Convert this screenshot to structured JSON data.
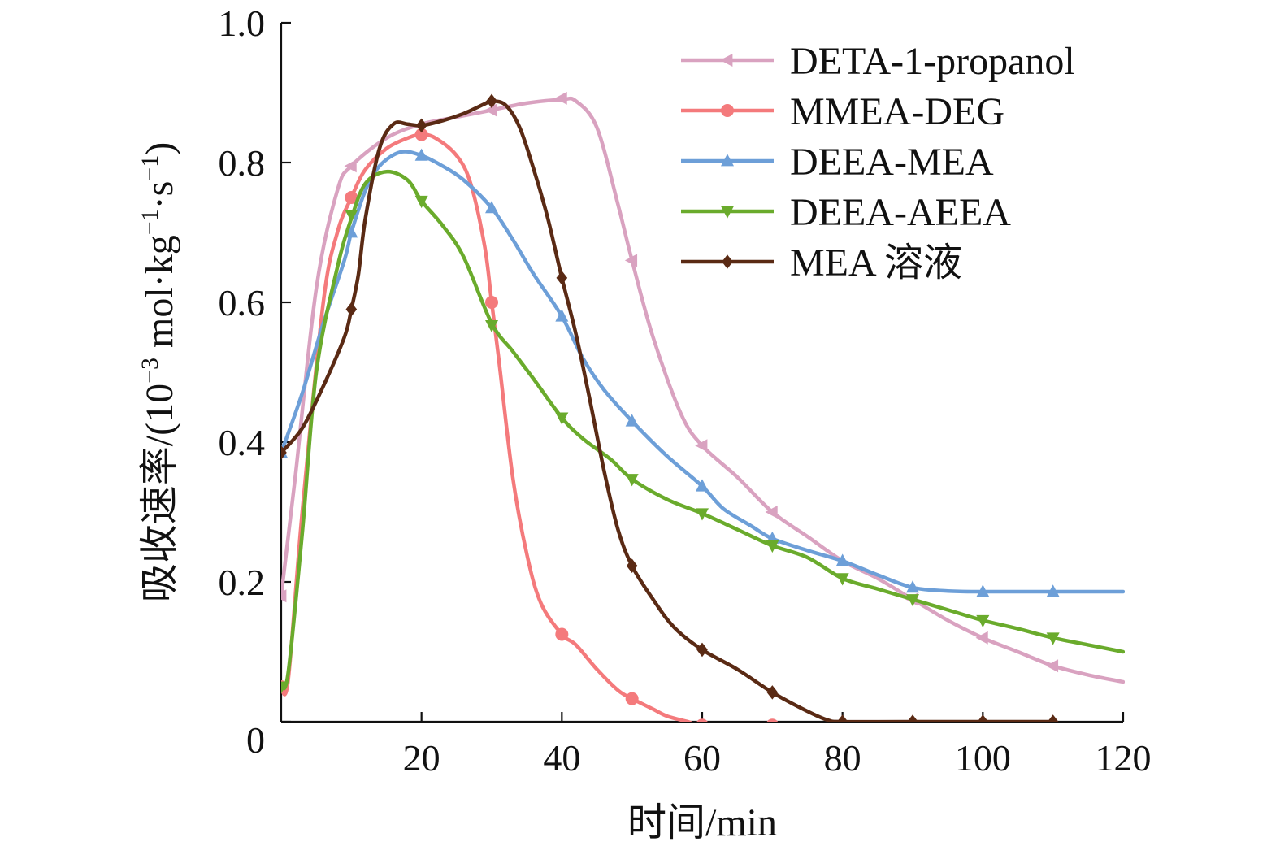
{
  "chart_data": {
    "type": "line",
    "xlabel": "时间/min",
    "ylabel": {
      "prefix": "吸收速率/(10",
      "exp1": "−3",
      "mid": " mol·kg",
      "exp2": "−1",
      "mid2": "·s",
      "exp3": "−1",
      "suffix": ")"
    },
    "xlim": [
      0,
      120
    ],
    "ylim": [
      0,
      1.0
    ],
    "xticks": [
      20,
      40,
      60,
      80,
      100,
      120
    ],
    "xtick_labels": [
      "20",
      "40",
      "60",
      "80",
      "100",
      "120"
    ],
    "yticks": [
      0,
      0.2,
      0.4,
      0.6,
      0.8,
      1.0
    ],
    "ytick_labels": [
      "0",
      "0.2",
      "0.4",
      "0.6",
      "0.8",
      "1.0"
    ],
    "legend_position": "top-right",
    "grid": false,
    "series": [
      {
        "name": "DETA-1-propanol",
        "color": "#d9a2c0",
        "marker": "triangle-left",
        "curve": [
          [
            0,
            0.18
          ],
          [
            2,
            0.35
          ],
          [
            5,
            0.62
          ],
          [
            8,
            0.76
          ],
          [
            10,
            0.795
          ],
          [
            15,
            0.835
          ],
          [
            20,
            0.855
          ],
          [
            25,
            0.865
          ],
          [
            30,
            0.875
          ],
          [
            35,
            0.885
          ],
          [
            40,
            0.89
          ],
          [
            42,
            0.888
          ],
          [
            45,
            0.85
          ],
          [
            48,
            0.74
          ],
          [
            50,
            0.66
          ],
          [
            53,
            0.55
          ],
          [
            57,
            0.44
          ],
          [
            60,
            0.395
          ],
          [
            65,
            0.35
          ],
          [
            70,
            0.3
          ],
          [
            75,
            0.265
          ],
          [
            80,
            0.23
          ],
          [
            85,
            0.205
          ],
          [
            90,
            0.175
          ],
          [
            95,
            0.145
          ],
          [
            100,
            0.12
          ],
          [
            105,
            0.1
          ],
          [
            110,
            0.08
          ],
          [
            115,
            0.067
          ],
          [
            120,
            0.057
          ]
        ],
        "markers": [
          [
            0,
            0.18
          ],
          [
            10,
            0.795
          ],
          [
            30,
            0.875
          ],
          [
            40,
            0.892
          ],
          [
            50,
            0.66
          ],
          [
            60,
            0.395
          ],
          [
            70,
            0.3
          ],
          [
            90,
            0.175
          ],
          [
            100,
            0.12
          ],
          [
            110,
            0.08
          ]
        ]
      },
      {
        "name": "MMEA-DEG",
        "color": "#f47a7c",
        "marker": "circle",
        "curve": [
          [
            0,
            0.05
          ],
          [
            1,
            0.06
          ],
          [
            3,
            0.3
          ],
          [
            6,
            0.6
          ],
          [
            8,
            0.7
          ],
          [
            10,
            0.75
          ],
          [
            12,
            0.79
          ],
          [
            15,
            0.82
          ],
          [
            18,
            0.835
          ],
          [
            20,
            0.84
          ],
          [
            22,
            0.835
          ],
          [
            25,
            0.81
          ],
          [
            27,
            0.77
          ],
          [
            29,
            0.68
          ],
          [
            30,
            0.6
          ],
          [
            31,
            0.52
          ],
          [
            33,
            0.35
          ],
          [
            35,
            0.24
          ],
          [
            37,
            0.17
          ],
          [
            40,
            0.125
          ],
          [
            42,
            0.11
          ],
          [
            45,
            0.075
          ],
          [
            48,
            0.045
          ],
          [
            50,
            0.033
          ],
          [
            53,
            0.018
          ],
          [
            55,
            0.008
          ],
          [
            58,
            0
          ],
          [
            60,
            -0.005
          ],
          [
            70,
            -0.005
          ]
        ],
        "markers": [
          [
            0,
            0.05
          ],
          [
            10,
            0.75
          ],
          [
            20,
            0.84
          ],
          [
            30,
            0.6
          ],
          [
            40,
            0.125
          ],
          [
            50,
            0.033
          ],
          [
            60,
            -0.005
          ],
          [
            70,
            -0.005
          ]
        ]
      },
      {
        "name": "DEEA-MEA",
        "color": "#6d9fd8",
        "marker": "triangle-up",
        "curve": [
          [
            0,
            0.385
          ],
          [
            3,
            0.47
          ],
          [
            6,
            0.57
          ],
          [
            9,
            0.66
          ],
          [
            10,
            0.7
          ],
          [
            12,
            0.76
          ],
          [
            14,
            0.795
          ],
          [
            17,
            0.815
          ],
          [
            20,
            0.81
          ],
          [
            23,
            0.795
          ],
          [
            26,
            0.775
          ],
          [
            30,
            0.735
          ],
          [
            33,
            0.69
          ],
          [
            36,
            0.64
          ],
          [
            40,
            0.58
          ],
          [
            43,
            0.52
          ],
          [
            46,
            0.475
          ],
          [
            50,
            0.43
          ],
          [
            55,
            0.38
          ],
          [
            60,
            0.337
          ],
          [
            63,
            0.305
          ],
          [
            67,
            0.28
          ],
          [
            70,
            0.262
          ],
          [
            75,
            0.245
          ],
          [
            80,
            0.23
          ],
          [
            85,
            0.21
          ],
          [
            90,
            0.192
          ],
          [
            95,
            0.187
          ],
          [
            100,
            0.186
          ],
          [
            110,
            0.186
          ],
          [
            120,
            0.186
          ]
        ],
        "markers": [
          [
            0,
            0.385
          ],
          [
            10,
            0.7
          ],
          [
            20,
            0.81
          ],
          [
            30,
            0.735
          ],
          [
            40,
            0.58
          ],
          [
            50,
            0.43
          ],
          [
            60,
            0.337
          ],
          [
            70,
            0.262
          ],
          [
            80,
            0.23
          ],
          [
            90,
            0.192
          ],
          [
            100,
            0.186
          ],
          [
            110,
            0.186
          ]
        ]
      },
      {
        "name": "DEEA-AEEA",
        "color": "#6aab2c",
        "marker": "triangle-down",
        "curve": [
          [
            0,
            0.05
          ],
          [
            1,
            0.07
          ],
          [
            3,
            0.27
          ],
          [
            5,
            0.5
          ],
          [
            8,
            0.65
          ],
          [
            10,
            0.72
          ],
          [
            12,
            0.77
          ],
          [
            15,
            0.787
          ],
          [
            18,
            0.775
          ],
          [
            20,
            0.745
          ],
          [
            23,
            0.71
          ],
          [
            26,
            0.665
          ],
          [
            30,
            0.57
          ],
          [
            33,
            0.53
          ],
          [
            36,
            0.49
          ],
          [
            40,
            0.435
          ],
          [
            43,
            0.405
          ],
          [
            47,
            0.375
          ],
          [
            50,
            0.347
          ],
          [
            55,
            0.318
          ],
          [
            60,
            0.298
          ],
          [
            65,
            0.275
          ],
          [
            70,
            0.252
          ],
          [
            75,
            0.235
          ],
          [
            80,
            0.205
          ],
          [
            85,
            0.19
          ],
          [
            90,
            0.175
          ],
          [
            95,
            0.16
          ],
          [
            100,
            0.145
          ],
          [
            105,
            0.133
          ],
          [
            110,
            0.12
          ],
          [
            115,
            0.11
          ],
          [
            120,
            0.1
          ]
        ],
        "markers": [
          [
            0,
            0.05
          ],
          [
            10,
            0.725
          ],
          [
            20,
            0.745
          ],
          [
            30,
            0.567
          ],
          [
            40,
            0.435
          ],
          [
            50,
            0.347
          ],
          [
            60,
            0.298
          ],
          [
            70,
            0.252
          ],
          [
            80,
            0.205
          ],
          [
            90,
            0.175
          ],
          [
            100,
            0.145
          ],
          [
            110,
            0.12
          ]
        ]
      },
      {
        "name": "MEA 溶液",
        "color": "#5a2a14",
        "marker": "diamond",
        "curve": [
          [
            0,
            0.385
          ],
          [
            3,
            0.42
          ],
          [
            6,
            0.48
          ],
          [
            9,
            0.55
          ],
          [
            10,
            0.59
          ],
          [
            11,
            0.64
          ],
          [
            12,
            0.72
          ],
          [
            14,
            0.82
          ],
          [
            16,
            0.855
          ],
          [
            18,
            0.855
          ],
          [
            20,
            0.853
          ],
          [
            23,
            0.86
          ],
          [
            26,
            0.87
          ],
          [
            29,
            0.884
          ],
          [
            30,
            0.888
          ],
          [
            32,
            0.882
          ],
          [
            34,
            0.85
          ],
          [
            36,
            0.79
          ],
          [
            38,
            0.72
          ],
          [
            40,
            0.635
          ],
          [
            42,
            0.555
          ],
          [
            44,
            0.46
          ],
          [
            46,
            0.36
          ],
          [
            48,
            0.275
          ],
          [
            50,
            0.223
          ],
          [
            53,
            0.175
          ],
          [
            56,
            0.135
          ],
          [
            60,
            0.103
          ],
          [
            65,
            0.075
          ],
          [
            70,
            0.042
          ],
          [
            75,
            0.015
          ],
          [
            78,
            0.002
          ],
          [
            80,
            0
          ],
          [
            90,
            0
          ],
          [
            110,
            0
          ]
        ],
        "markers": [
          [
            0,
            0.385
          ],
          [
            10,
            0.59
          ],
          [
            20,
            0.853
          ],
          [
            30,
            0.888
          ],
          [
            40,
            0.635
          ],
          [
            50,
            0.223
          ],
          [
            60,
            0.103
          ],
          [
            70,
            0.042
          ],
          [
            80,
            0
          ],
          [
            90,
            0
          ],
          [
            100,
            0
          ],
          [
            110,
            0
          ]
        ]
      }
    ]
  }
}
